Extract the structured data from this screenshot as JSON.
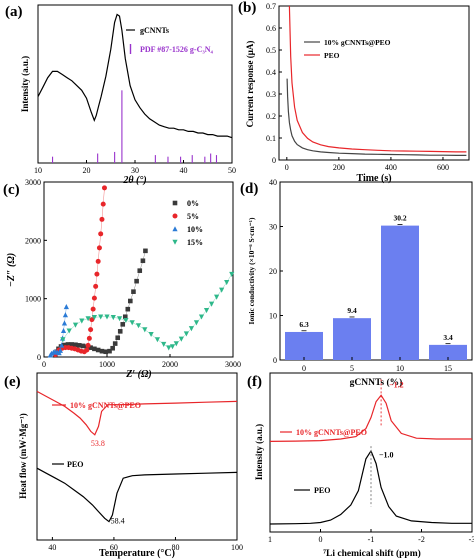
{
  "figure": {
    "panels": [
      {
        "id": "a",
        "label": "(a)"
      },
      {
        "id": "b",
        "label": "(b)"
      },
      {
        "id": "c",
        "label": "(c)"
      },
      {
        "id": "d",
        "label": "(d)"
      },
      {
        "id": "e",
        "label": "(e)"
      },
      {
        "id": "f",
        "label": "(f)"
      }
    ]
  },
  "chart_data": [
    {
      "panel": "a",
      "type": "line",
      "xlabel": "2θ (°)",
      "ylabel": "Intensity (a.u.)",
      "xlim": [
        10,
        50
      ],
      "ylim": [
        0,
        10
      ],
      "xticks": [
        "10",
        "20",
        "30",
        "40",
        "50"
      ],
      "y_tick_labels": false,
      "series": [
        {
          "name": "gCNNTs",
          "color": "#000000",
          "x": [
            10,
            11,
            12,
            13,
            14,
            15,
            16,
            17,
            18,
            19,
            20,
            21,
            21.6,
            22,
            22.5,
            23,
            24,
            25,
            25.8,
            26.3,
            26.8,
            27.3,
            28,
            29,
            30,
            31,
            32,
            33,
            34,
            35,
            36,
            37,
            38,
            39,
            40,
            41,
            42,
            43,
            44,
            45,
            46,
            47,
            48,
            49,
            50
          ],
          "y": [
            4.2,
            4.8,
            5.4,
            5.8,
            5.8,
            5.6,
            5.4,
            5.2,
            4.9,
            4.6,
            4.1,
            3.2,
            2.7,
            3.0,
            3.6,
            4.2,
            5.5,
            7.2,
            8.9,
            9.4,
            9.3,
            8.4,
            6.6,
            4.9,
            4.0,
            3.5,
            3.1,
            2.8,
            2.6,
            2.4,
            2.3,
            2.2,
            2.2,
            2.1,
            2.1,
            2.0,
            2.0,
            1.9,
            1.9,
            1.8,
            1.8,
            1.7,
            1.7,
            1.7,
            1.6
          ]
        }
      ],
      "reference": {
        "name": "PDF #87-1526 g-C₃N₄",
        "color": "#9933cc",
        "positions": [
          13.0,
          22.3,
          25.8,
          27.3,
          34.2,
          36.8,
          39.4,
          41.8,
          44.4,
          45.6,
          46.8
        ],
        "heights": [
          0.4,
          0.6,
          0.7,
          4.6,
          0.5,
          0.4,
          0.4,
          0.5,
          0.4,
          0.6,
          0.5
        ]
      }
    },
    {
      "panel": "b",
      "type": "line",
      "xlabel": "Time (s)",
      "ylabel": "Current response (μA)",
      "xlim": [
        -30,
        700
      ],
      "ylim": [
        0.0,
        0.7
      ],
      "xticks": [
        0,
        200,
        400,
        600
      ],
      "yticks": [
        0.0,
        0.1,
        0.2,
        0.3,
        0.4,
        0.5,
        0.6,
        0.7
      ],
      "series": [
        {
          "name": "10% gCNNTs@PEO",
          "color": "#444444",
          "x": [
            1,
            3,
            6,
            10,
            15,
            20,
            30,
            40,
            60,
            80,
            100,
            130,
            160,
            200,
            250,
            300,
            350,
            400,
            450,
            500,
            550,
            600,
            650,
            690
          ],
          "y": [
            0.37,
            0.29,
            0.22,
            0.17,
            0.135,
            0.11,
            0.085,
            0.07,
            0.055,
            0.047,
            0.042,
            0.037,
            0.034,
            0.031,
            0.029,
            0.027,
            0.026,
            0.025,
            0.024,
            0.023,
            0.022,
            0.022,
            0.021,
            0.021
          ]
        },
        {
          "name": "PEO",
          "color": "#e8262a",
          "x": [
            10,
            15,
            20,
            30,
            40,
            60,
            80,
            100,
            130,
            160,
            200,
            250,
            300,
            350,
            400,
            450,
            500,
            550,
            600,
            650,
            690
          ],
          "y": [
            0.7,
            0.47,
            0.35,
            0.24,
            0.18,
            0.125,
            0.098,
            0.082,
            0.069,
            0.061,
            0.055,
            0.05,
            0.047,
            0.044,
            0.042,
            0.041,
            0.04,
            0.039,
            0.038,
            0.037,
            0.037
          ]
        }
      ]
    },
    {
      "panel": "c",
      "type": "scatter",
      "xlabel": "Z′ (Ω)",
      "ylabel": "−Z″ (Ω)",
      "xlim": [
        0,
        3000
      ],
      "ylim": [
        0,
        3000
      ],
      "xticks": [
        0,
        1000,
        2000,
        3000
      ],
      "yticks": [
        0,
        1000,
        2000,
        3000
      ],
      "series": [
        {
          "name": "0%",
          "color": "#3a3a3a",
          "marker": "square",
          "x": [
            180,
            200,
            230,
            270,
            320,
            380,
            440,
            500,
            560,
            620,
            680,
            740,
            800,
            860,
            920,
            980,
            1040,
            1090,
            1130,
            1170,
            1210,
            1250,
            1290,
            1330,
            1370,
            1420,
            1470,
            1520,
            1570,
            1610
          ],
          "y": [
            40,
            90,
            140,
            180,
            205,
            215,
            215,
            210,
            200,
            190,
            175,
            160,
            140,
            120,
            100,
            90,
            100,
            150,
            230,
            330,
            440,
            560,
            690,
            820,
            960,
            1120,
            1300,
            1480,
            1650,
            1820
          ]
        },
        {
          "name": "5%",
          "color": "#e8262a",
          "marker": "circle",
          "x": [
            180,
            200,
            240,
            290,
            340,
            390,
            440,
            490,
            540,
            590,
            640,
            680,
            700,
            720,
            740,
            760,
            780,
            800,
            820,
            840,
            860,
            880,
            900,
            920,
            940,
            960
          ],
          "y": [
            40,
            80,
            120,
            150,
            160,
            160,
            150,
            140,
            120,
            100,
            90,
            120,
            200,
            320,
            470,
            640,
            820,
            1010,
            1210,
            1420,
            1640,
            1870,
            2110,
            2360,
            2620,
            2900
          ]
        },
        {
          "name": "10%",
          "color": "#2b7bd6",
          "marker": "triangle",
          "x": [
            100,
            120,
            150,
            180,
            210,
            240,
            260,
            280,
            295,
            310,
            325,
            340,
            355
          ],
          "y": [
            30,
            60,
            80,
            90,
            80,
            70,
            110,
            200,
            320,
            450,
            580,
            720,
            860
          ]
        },
        {
          "name": "15%",
          "color": "#2eb88a",
          "marker": "triangle-down",
          "x": [
            300,
            400,
            500,
            600,
            700,
            800,
            900,
            1000,
            1100,
            1200,
            1300,
            1400,
            1500,
            1600,
            1700,
            1800,
            1900,
            1980,
            2040,
            2100,
            2180,
            2260,
            2340,
            2420,
            2500,
            2580,
            2660,
            2740,
            2820,
            2900,
            2980
          ],
          "y": [
            300,
            450,
            550,
            620,
            660,
            680,
            690,
            690,
            680,
            660,
            630,
            590,
            540,
            470,
            390,
            300,
            220,
            160,
            180,
            230,
            310,
            400,
            490,
            590,
            690,
            800,
            910,
            1030,
            1150,
            1280,
            1420
          ]
        }
      ]
    },
    {
      "panel": "d",
      "type": "bar",
      "xlabel": "gCNNTs (%)",
      "ylabel": "Ionic conductivity (×10⁻⁶ S·cm⁻¹)",
      "ylim": [
        0,
        40
      ],
      "yticks": [
        0,
        10,
        20,
        30,
        40
      ],
      "categories": [
        "0",
        "5",
        "10",
        "15"
      ],
      "values": [
        6.3,
        9.4,
        30.2,
        3.4
      ],
      "data_labels": [
        "6.3",
        "9.4",
        "30.2",
        "3.4"
      ],
      "color": "#6b7ff0"
    },
    {
      "panel": "e",
      "type": "line",
      "xlabel": "Temperature (°C)",
      "ylabel": "Heat flow (mW·Mg⁻¹)",
      "xlim": [
        35,
        100
      ],
      "ylim": [
        0,
        10
      ],
      "xticks": [
        40,
        60,
        80,
        100
      ],
      "y_tick_labels": false,
      "annotations": [
        "53.8",
        "58.4"
      ],
      "series": [
        {
          "name": "10% gCNNTs@PEO",
          "color": "#e8262a",
          "x": [
            35,
            38,
            41,
            44,
            47,
            49,
            51,
            52.5,
            53.8,
            55,
            56,
            58,
            62,
            70,
            80,
            90,
            100
          ],
          "y": [
            8.9,
            8.6,
            8.3,
            8.0,
            7.6,
            7.3,
            6.9,
            6.5,
            6.3,
            6.8,
            7.7,
            8.1,
            8.1,
            8.15,
            8.2,
            8.25,
            8.3
          ]
        },
        {
          "name": "PEO",
          "color": "#000000",
          "x": [
            35,
            38,
            41,
            44,
            47,
            50,
            53,
            55,
            57,
            58.4,
            59.5,
            61,
            63,
            66,
            70,
            80,
            90,
            100
          ],
          "y": [
            4.3,
            4.0,
            3.7,
            3.4,
            3.0,
            2.6,
            2.1,
            1.7,
            1.3,
            1.1,
            1.5,
            2.8,
            3.7,
            3.85,
            3.9,
            3.95,
            4.0,
            4.05
          ]
        }
      ]
    },
    {
      "panel": "f",
      "type": "line",
      "xlabel": "⁷Li chemical shift (ppm)",
      "ylabel": "Intensity (a.u.)",
      "xlim": [
        1,
        -3
      ],
      "ylim": [
        0,
        10
      ],
      "xticks": [
        1,
        0,
        -1,
        -2,
        -3
      ],
      "y_tick_labels": false,
      "annotations": [
        "−1.2",
        "−1.0"
      ],
      "series": [
        {
          "name": "10% gCNNTs@PEO",
          "color": "#e8262a",
          "x": [
            1.0,
            0.5,
            0.0,
            -0.4,
            -0.7,
            -0.9,
            -1.0,
            -1.1,
            -1.2,
            -1.3,
            -1.4,
            -1.6,
            -1.9,
            -2.3,
            -2.7,
            -3.0
          ],
          "y": [
            5.7,
            5.72,
            5.75,
            5.85,
            6.0,
            6.5,
            7.2,
            8.2,
            8.6,
            8.1,
            7.0,
            6.2,
            5.9,
            5.85,
            5.85,
            5.85
          ]
        },
        {
          "name": "PEO",
          "color": "#000000",
          "x": [
            1.0,
            0.5,
            0.2,
            0.0,
            -0.2,
            -0.4,
            -0.6,
            -0.75,
            -0.9,
            -1.0,
            -1.1,
            -1.2,
            -1.35,
            -1.5,
            -1.8,
            -2.2,
            -2.6,
            -3.0
          ],
          "y": [
            0.5,
            0.52,
            0.55,
            0.6,
            0.75,
            1.1,
            1.7,
            2.6,
            4.6,
            5.1,
            4.3,
            2.8,
            1.6,
            1.0,
            0.7,
            0.6,
            0.55,
            0.55
          ]
        }
      ]
    }
  ]
}
